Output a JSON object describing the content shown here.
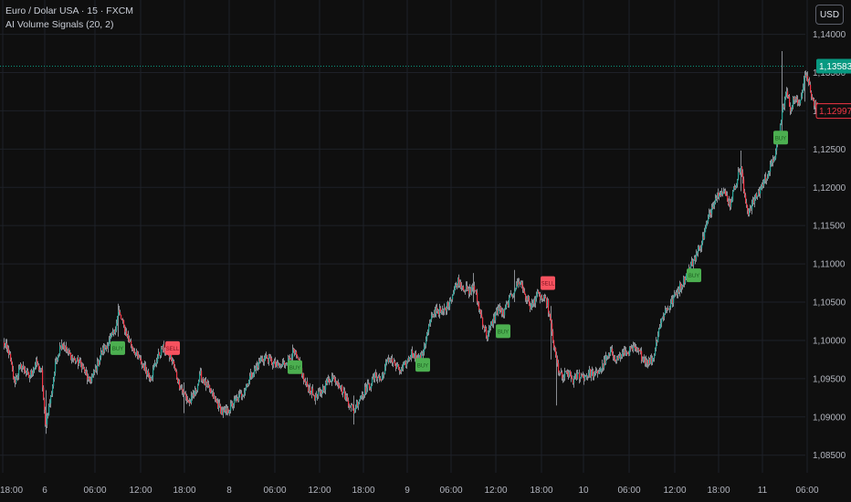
{
  "header": {
    "symbol_line": "Euro / Dolar USA · 15 · FXCM",
    "indicator_line": "AI Volume Signals (20, 2)",
    "currency_button": "USD"
  },
  "chart_data": {
    "type": "candlestick",
    "symbol": "Euro / Dolar USA",
    "interval": "15",
    "source": "FXCM",
    "ylim": [
      1.08425,
      1.1415
    ],
    "y_ticks": [
      "1,14000",
      "1,13500",
      "1,13000",
      "1,12500",
      "1,12000",
      "1,11500",
      "1,11000",
      "1,10500",
      "1,10000",
      "1,09500",
      "1,09000",
      "1,08500"
    ],
    "y_tick_values": [
      1.14,
      1.135,
      1.13,
      1.125,
      1.12,
      1.115,
      1.11,
      1.105,
      1.1,
      1.095,
      1.09,
      1.085
    ],
    "x_ticks": [
      "18:00",
      "6",
      "06:00",
      "12:00",
      "18:00",
      "8",
      "06:00",
      "12:00",
      "18:00",
      "9",
      "06:00",
      "12:00",
      "18:00",
      "10",
      "06:00",
      "12:00",
      "18:00",
      "11",
      "06:00"
    ],
    "x_tick_bars": [
      0,
      46,
      101,
      151,
      199,
      248,
      298,
      347,
      395,
      443,
      491,
      540,
      590,
      636,
      686,
      736,
      784,
      832,
      881
    ],
    "last_price": {
      "label": "1,13583",
      "value": 1.13583
    },
    "secondary_price": {
      "label": "1,12997",
      "value": 1.12997
    },
    "path": [
      [
        0,
        1.0996
      ],
      [
        6,
        1.0985
      ],
      [
        12,
        1.0945
      ],
      [
        20,
        1.0968
      ],
      [
        28,
        1.0952
      ],
      [
        36,
        1.097
      ],
      [
        42,
        1.0958
      ],
      [
        46,
        1.0888
      ],
      [
        52,
        1.0925
      ],
      [
        58,
        1.0975
      ],
      [
        64,
        1.0998
      ],
      [
        70,
        1.0985
      ],
      [
        78,
        1.0975
      ],
      [
        86,
        1.0968
      ],
      [
        94,
        1.0945
      ],
      [
        100,
        1.0958
      ],
      [
        108,
        1.0985
      ],
      [
        116,
        1.0998
      ],
      [
        122,
        1.1012
      ],
      [
        126,
        1.1038
      ],
      [
        130,
        1.1025
      ],
      [
        136,
        1.1005
      ],
      [
        142,
        1.099
      ],
      [
        150,
        1.0972
      ],
      [
        156,
        1.0962
      ],
      [
        162,
        1.0952
      ],
      [
        168,
        1.0975
      ],
      [
        174,
        1.099
      ],
      [
        180,
        1.0985
      ],
      [
        186,
        1.097
      ],
      [
        192,
        1.0945
      ],
      [
        198,
        1.093
      ],
      [
        204,
        1.0918
      ],
      [
        210,
        1.0932
      ],
      [
        216,
        1.0955
      ],
      [
        222,
        1.0942
      ],
      [
        228,
        1.093
      ],
      [
        234,
        1.0918
      ],
      [
        240,
        1.0905
      ],
      [
        246,
        1.0908
      ],
      [
        252,
        1.0918
      ],
      [
        258,
        1.0925
      ],
      [
        264,
        1.0935
      ],
      [
        270,
        1.0952
      ],
      [
        276,
        1.0962
      ],
      [
        282,
        1.0975
      ],
      [
        288,
        1.0978
      ],
      [
        294,
        1.0972
      ],
      [
        300,
        1.0965
      ],
      [
        306,
        1.0968
      ],
      [
        312,
        1.0975
      ],
      [
        318,
        1.0985
      ],
      [
        322,
        1.0975
      ],
      [
        326,
        1.0962
      ],
      [
        330,
        1.0945
      ],
      [
        336,
        1.0935
      ],
      [
        342,
        1.0925
      ],
      [
        348,
        1.0932
      ],
      [
        354,
        1.0945
      ],
      [
        360,
        1.0952
      ],
      [
        366,
        1.0948
      ],
      [
        372,
        1.0932
      ],
      [
        378,
        1.092
      ],
      [
        384,
        1.0908
      ],
      [
        390,
        1.0925
      ],
      [
        396,
        1.0935
      ],
      [
        402,
        1.0942
      ],
      [
        408,
        1.0955
      ],
      [
        414,
        1.0948
      ],
      [
        418,
        1.0965
      ],
      [
        424,
        1.0978
      ],
      [
        430,
        1.0965
      ],
      [
        436,
        1.096
      ],
      [
        442,
        1.0972
      ],
      [
        448,
        1.0985
      ],
      [
        454,
        1.0975
      ],
      [
        458,
        1.0978
      ],
      [
        462,
        1.0998
      ],
      [
        468,
        1.1025
      ],
      [
        474,
        1.1042
      ],
      [
        480,
        1.1035
      ],
      [
        486,
        1.1045
      ],
      [
        492,
        1.106
      ],
      [
        498,
        1.1078
      ],
      [
        504,
        1.107
      ],
      [
        510,
        1.1062
      ],
      [
        515,
        1.1072
      ],
      [
        520,
        1.1048
      ],
      [
        526,
        1.102
      ],
      [
        530,
        1.1005
      ],
      [
        536,
        1.1025
      ],
      [
        542,
        1.1042
      ],
      [
        548,
        1.1035
      ],
      [
        554,
        1.1052
      ],
      [
        560,
        1.1068
      ],
      [
        566,
        1.1078
      ],
      [
        572,
        1.1058
      ],
      [
        578,
        1.1042
      ],
      [
        584,
        1.106
      ],
      [
        590,
        1.1055
      ],
      [
        596,
        1.1048
      ],
      [
        600,
        1.1018
      ],
      [
        604,
        1.0985
      ],
      [
        608,
        1.0962
      ],
      [
        612,
        1.095
      ],
      [
        618,
        1.0958
      ],
      [
        624,
        1.0948
      ],
      [
        630,
        1.0955
      ],
      [
        636,
        1.0952
      ],
      [
        642,
        1.0958
      ],
      [
        648,
        1.0955
      ],
      [
        654,
        1.0962
      ],
      [
        660,
        1.0975
      ],
      [
        666,
        1.0985
      ],
      [
        672,
        1.0975
      ],
      [
        678,
        1.0982
      ],
      [
        684,
        1.0985
      ],
      [
        690,
        1.0988
      ],
      [
        696,
        1.0985
      ],
      [
        702,
        1.0975
      ],
      [
        708,
        1.0972
      ],
      [
        712,
        1.0978
      ],
      [
        718,
        1.1015
      ],
      [
        724,
        1.1038
      ],
      [
        730,
        1.1045
      ],
      [
        736,
        1.106
      ],
      [
        742,
        1.1072
      ],
      [
        748,
        1.1085
      ],
      [
        754,
        1.11
      ],
      [
        760,
        1.1115
      ],
      [
        766,
        1.1132
      ],
      [
        772,
        1.1158
      ],
      [
        778,
        1.1182
      ],
      [
        784,
        1.1195
      ],
      [
        790,
        1.1192
      ],
      [
        796,
        1.1178
      ],
      [
        802,
        1.1205
      ],
      [
        808,
        1.1228
      ],
      [
        812,
        1.1185
      ],
      [
        816,
        1.1168
      ],
      [
        822,
        1.1182
      ],
      [
        828,
        1.1195
      ],
      [
        834,
        1.121
      ],
      [
        840,
        1.1225
      ],
      [
        846,
        1.1245
      ],
      [
        850,
        1.1272
      ],
      [
        854,
        1.1305
      ],
      [
        858,
        1.1325
      ],
      [
        862,
        1.1302
      ],
      [
        866,
        1.1318
      ],
      [
        870,
        1.1308
      ],
      [
        874,
        1.1322
      ],
      [
        878,
        1.1348
      ],
      [
        882,
        1.1338
      ],
      [
        886,
        1.1318
      ],
      [
        890,
        1.1305
      ],
      [
        893,
        1.1302
      ]
    ],
    "spikes": [
      {
        "bar": 47,
        "low": 1.0878,
        "high": 1.0935
      },
      {
        "bar": 126,
        "low": 1.1005,
        "high": 1.1048
      },
      {
        "bar": 198,
        "low": 1.0905,
        "high": 1.0945
      },
      {
        "bar": 384,
        "low": 1.089,
        "high": 1.0928
      },
      {
        "bar": 515,
        "low": 1.105,
        "high": 1.1088
      },
      {
        "bar": 560,
        "low": 1.105,
        "high": 1.1092
      },
      {
        "bar": 600,
        "low": 1.0975,
        "high": 1.1045
      },
      {
        "bar": 606,
        "low": 1.0915,
        "high": 1.0985
      },
      {
        "bar": 808,
        "low": 1.1195,
        "high": 1.1248
      },
      {
        "bar": 853,
        "low": 1.1265,
        "high": 1.1378
      },
      {
        "bar": 878,
        "low": 1.1312,
        "high": 1.1352
      }
    ],
    "signals": [
      {
        "type": "buy",
        "label": "BUY",
        "bar": 126,
        "price": 1.099
      },
      {
        "type": "sell",
        "label": "SELL",
        "bar": 186,
        "price": 1.099
      },
      {
        "type": "buy",
        "label": "BUY",
        "bar": 320,
        "price": 1.0965
      },
      {
        "type": "buy",
        "label": "BUY",
        "bar": 460,
        "price": 1.0968
      },
      {
        "type": "buy",
        "label": "BUY",
        "bar": 548,
        "price": 1.1012
      },
      {
        "type": "sell",
        "label": "SELL",
        "bar": 597,
        "price": 1.1075
      },
      {
        "type": "buy",
        "label": "BUY",
        "bar": 757,
        "price": 1.1085
      },
      {
        "type": "buy",
        "label": "BUY",
        "bar": 852,
        "price": 1.1265
      }
    ],
    "colors": {
      "background": "#0f0f0f",
      "grid": "#1e2128",
      "up": "#26a69a",
      "down": "#f23645",
      "wick": "#8a8d93",
      "buy_label_bg": "#4caf50",
      "sell_label_bg": "#f7525f",
      "last_price_line": "#089981",
      "axis_text": "#b2b5be"
    }
  }
}
